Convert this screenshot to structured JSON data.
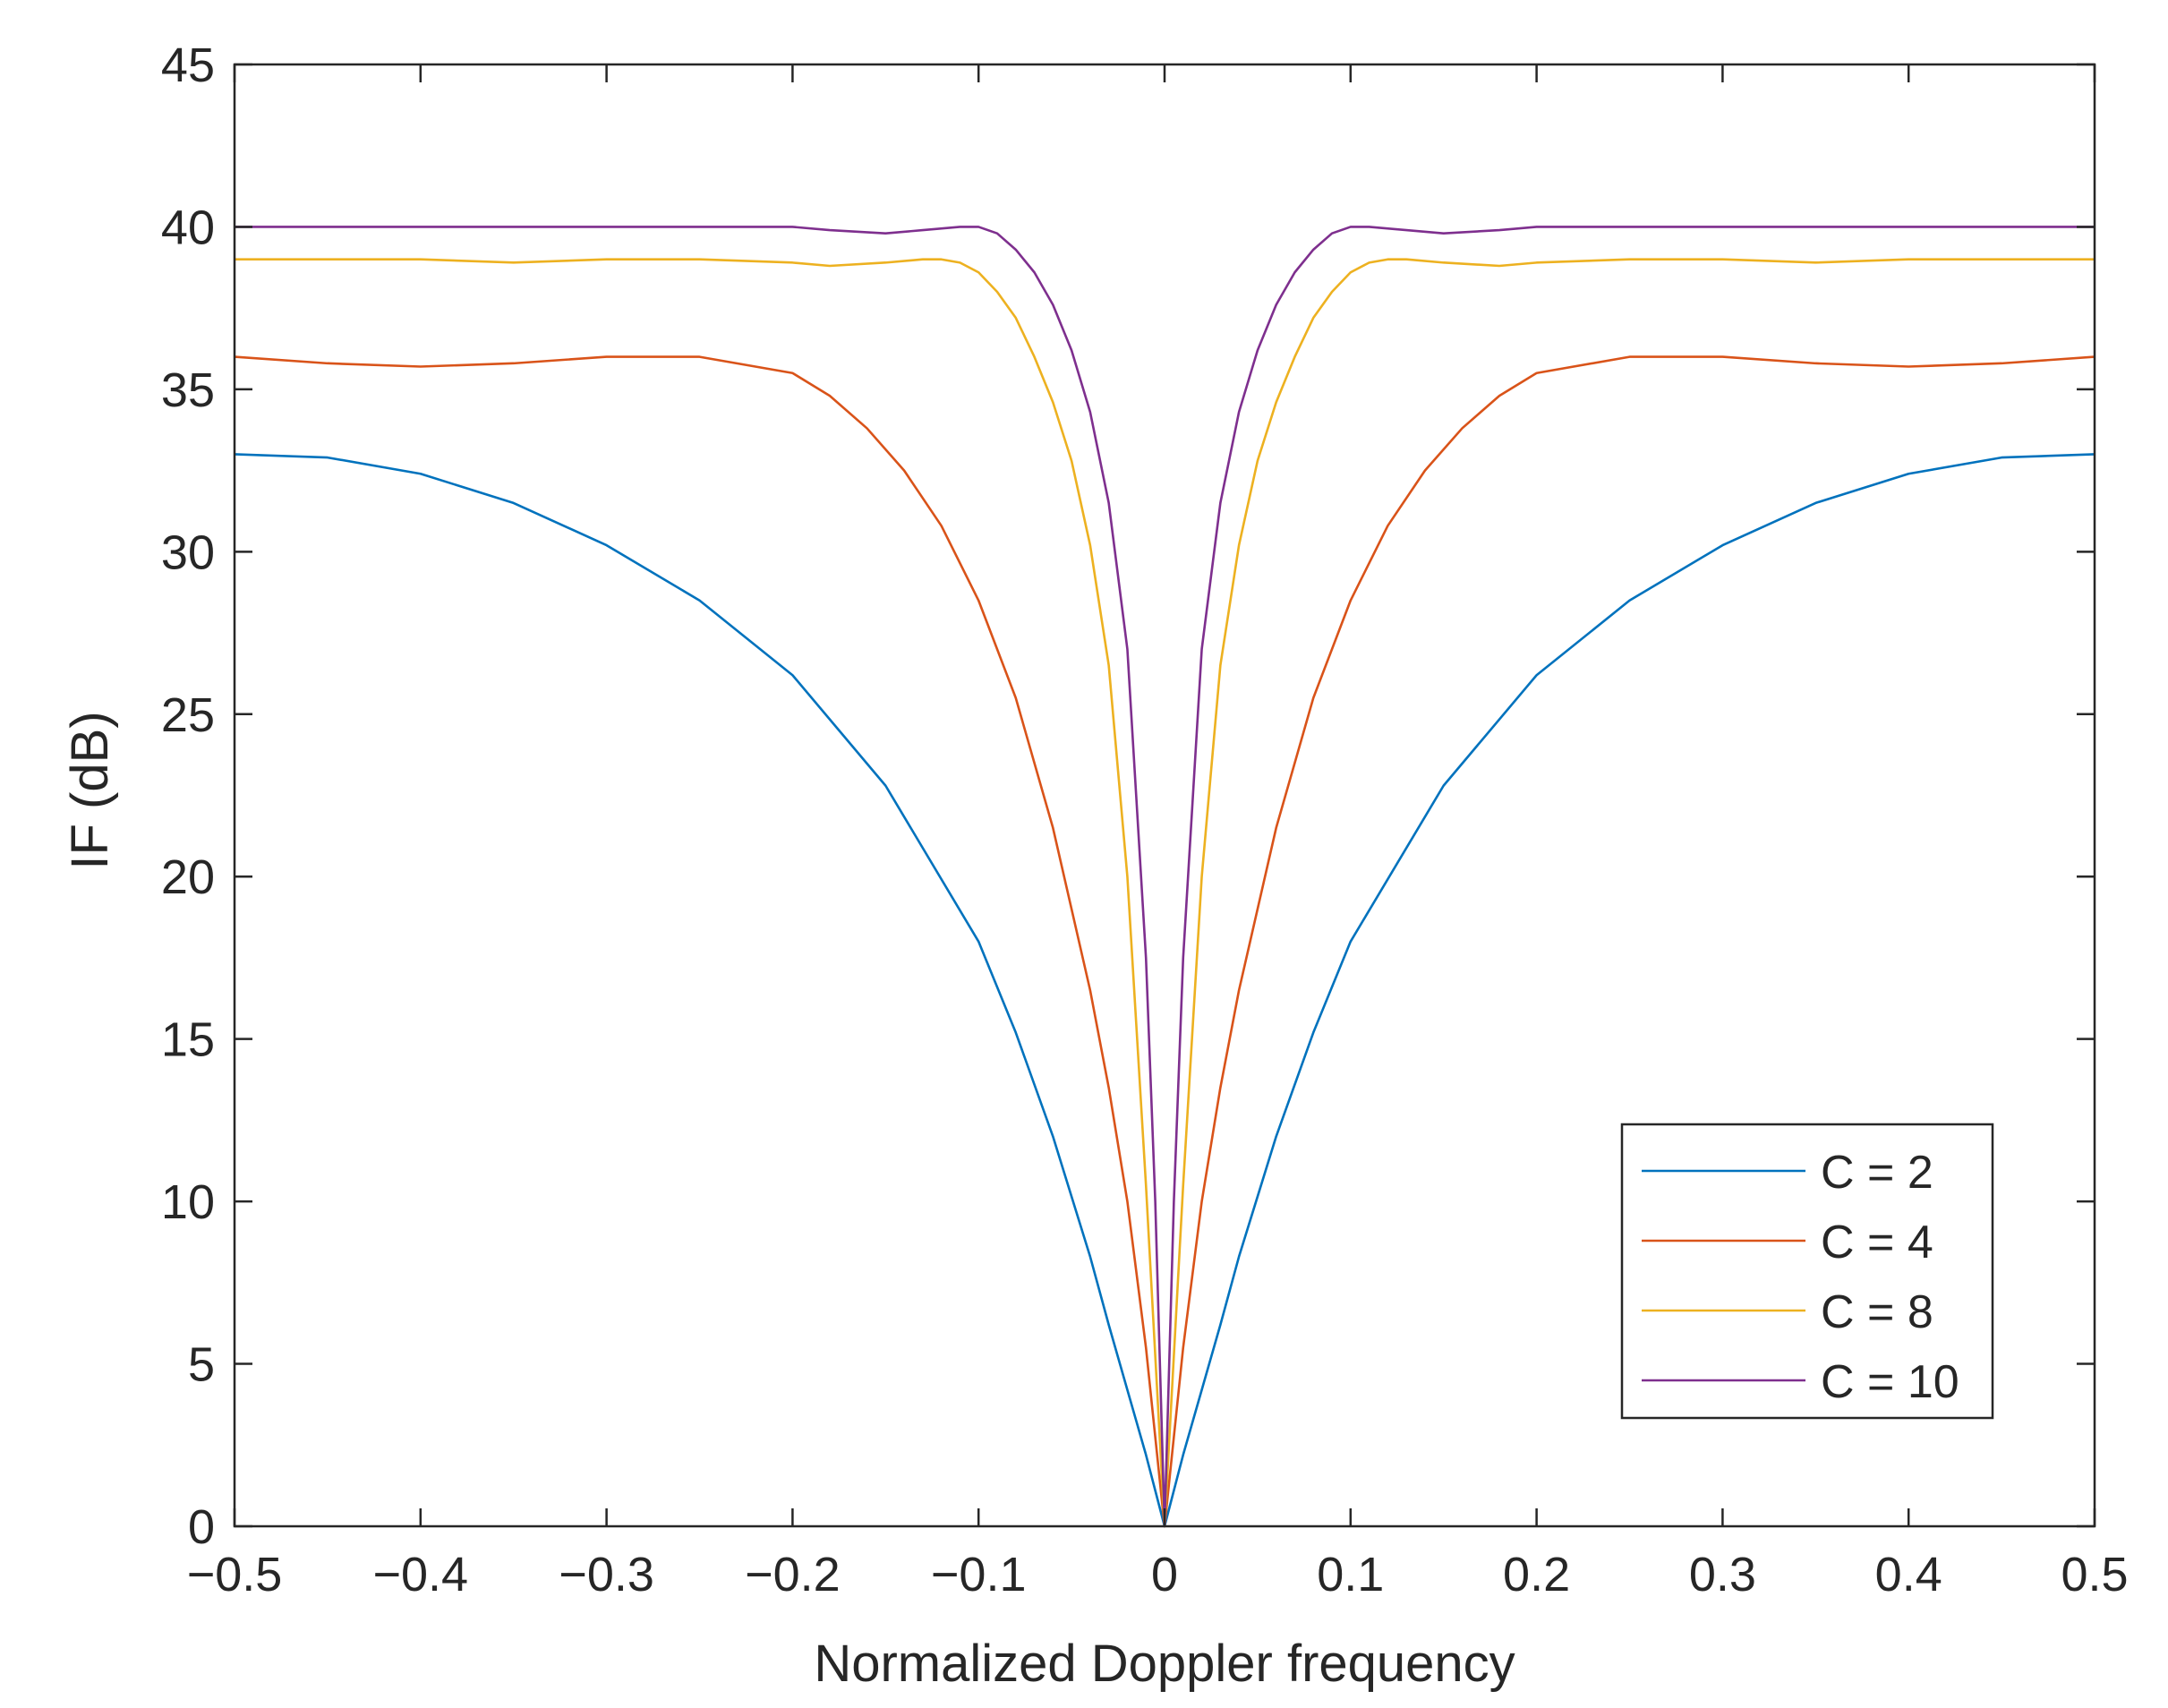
{
  "chart_data": {
    "type": "line",
    "title": "",
    "xlabel": "Normalized Doppler frequency",
    "ylabel": "IF (dB)",
    "xlim": [
      -0.5,
      0.5
    ],
    "ylim": [
      0,
      45
    ],
    "xticks": [
      -0.5,
      -0.4,
      -0.3,
      -0.2,
      -0.1,
      0,
      0.1,
      0.2,
      0.3,
      0.4,
      0.5
    ],
    "xtick_labels": [
      "−0.5",
      "−0.4",
      "−0.3",
      "−0.2",
      "−0.1",
      "0",
      "0.1",
      "0.2",
      "0.3",
      "0.4",
      "0.5"
    ],
    "yticks": [
      0,
      5,
      10,
      15,
      20,
      25,
      30,
      35,
      40,
      45
    ],
    "ytick_labels": [
      "0",
      "5",
      "10",
      "15",
      "20",
      "25",
      "30",
      "35",
      "40",
      "45"
    ],
    "grid": false,
    "legend_position": "bottom-right",
    "series": [
      {
        "name": "C = 2",
        "color": "#0072BD",
        "x": [
          -0.5,
          -0.45,
          -0.4,
          -0.35,
          -0.3,
          -0.25,
          -0.2,
          -0.15,
          -0.1,
          -0.08,
          -0.06,
          -0.04,
          -0.03,
          -0.02,
          -0.01,
          0,
          0.01,
          0.02,
          0.03,
          0.04,
          0.06,
          0.08,
          0.1,
          0.15,
          0.2,
          0.25,
          0.3,
          0.35,
          0.4,
          0.45,
          0.5
        ],
        "y": [
          33,
          32.9,
          32.4,
          31.5,
          30.2,
          28.5,
          26.2,
          22.8,
          18,
          15.2,
          12,
          8.3,
          6.2,
          4.2,
          2.2,
          0,
          2.2,
          4.2,
          6.2,
          8.3,
          12,
          15.2,
          18,
          22.8,
          26.2,
          28.5,
          30.2,
          31.5,
          32.4,
          32.9,
          33
        ]
      },
      {
        "name": "C = 4",
        "color": "#D95319",
        "x": [
          -0.5,
          -0.45,
          -0.4,
          -0.35,
          -0.3,
          -0.25,
          -0.2,
          -0.18,
          -0.16,
          -0.14,
          -0.12,
          -0.1,
          -0.08,
          -0.06,
          -0.04,
          -0.03,
          -0.02,
          -0.01,
          0,
          0.01,
          0.02,
          0.03,
          0.04,
          0.06,
          0.08,
          0.1,
          0.12,
          0.14,
          0.16,
          0.18,
          0.2,
          0.25,
          0.3,
          0.35,
          0.4,
          0.45,
          0.5
        ],
        "y": [
          36,
          35.8,
          35.7,
          35.8,
          36,
          36,
          35.5,
          34.8,
          33.8,
          32.5,
          30.8,
          28.5,
          25.5,
          21.5,
          16.5,
          13.5,
          10,
          5.5,
          0,
          5.5,
          10,
          13.5,
          16.5,
          21.5,
          25.5,
          28.5,
          30.8,
          32.5,
          33.8,
          34.8,
          35.5,
          36,
          36,
          35.8,
          35.7,
          35.8,
          36
        ]
      },
      {
        "name": "C = 8",
        "color": "#EDB120",
        "x": [
          -0.5,
          -0.45,
          -0.4,
          -0.35,
          -0.3,
          -0.25,
          -0.2,
          -0.18,
          -0.15,
          -0.13,
          -0.12,
          -0.11,
          -0.1,
          -0.09,
          -0.08,
          -0.07,
          -0.06,
          -0.05,
          -0.04,
          -0.03,
          -0.02,
          -0.01,
          0,
          0.01,
          0.02,
          0.03,
          0.04,
          0.05,
          0.06,
          0.07,
          0.08,
          0.09,
          0.1,
          0.11,
          0.12,
          0.13,
          0.15,
          0.18,
          0.2,
          0.25,
          0.3,
          0.35,
          0.4,
          0.45,
          0.5
        ],
        "y": [
          39,
          39,
          39,
          38.9,
          39,
          39,
          38.9,
          38.8,
          38.9,
          39,
          39,
          38.9,
          38.6,
          38,
          37.2,
          36,
          34.6,
          32.8,
          30.2,
          26.5,
          20,
          10.5,
          0,
          10.5,
          20,
          26.5,
          30.2,
          32.8,
          34.6,
          36,
          37.2,
          38,
          38.6,
          38.9,
          39,
          39,
          38.9,
          38.8,
          38.9,
          39,
          39,
          38.9,
          39,
          39,
          39
        ]
      },
      {
        "name": "C = 10",
        "color": "#7E2F8E",
        "x": [
          -0.5,
          -0.45,
          -0.4,
          -0.35,
          -0.3,
          -0.25,
          -0.2,
          -0.18,
          -0.15,
          -0.13,
          -0.11,
          -0.1,
          -0.09,
          -0.08,
          -0.07,
          -0.06,
          -0.05,
          -0.04,
          -0.03,
          -0.02,
          -0.01,
          -0.005,
          0,
          0.005,
          0.01,
          0.02,
          0.03,
          0.04,
          0.05,
          0.06,
          0.07,
          0.08,
          0.09,
          0.1,
          0.11,
          0.13,
          0.15,
          0.18,
          0.2,
          0.25,
          0.3,
          0.35,
          0.4,
          0.45,
          0.5
        ],
        "y": [
          40,
          40,
          40,
          40,
          40,
          40,
          40,
          39.9,
          39.8,
          39.9,
          40,
          40,
          39.8,
          39.3,
          38.6,
          37.6,
          36.2,
          34.3,
          31.5,
          27,
          17.5,
          10,
          0,
          10,
          17.5,
          27,
          31.5,
          34.3,
          36.2,
          37.6,
          38.6,
          39.3,
          39.8,
          40,
          40,
          39.9,
          39.8,
          39.9,
          40,
          40,
          40,
          40,
          40,
          40,
          40
        ]
      }
    ]
  }
}
